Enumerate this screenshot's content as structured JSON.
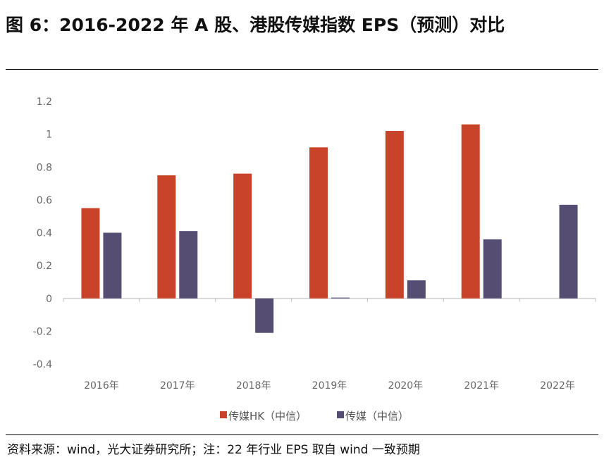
{
  "header": {
    "title": "图 6：2016-2022 年 A 股、港股传媒指数 EPS（预测）对比"
  },
  "footer": {
    "source": "资料来源：wind，光大证券研究所；注：22 年行业 EPS 取自 wind 一致预期"
  },
  "chart_data": {
    "type": "bar",
    "title": "",
    "xlabel": "",
    "ylabel": "",
    "categories": [
      "2016年",
      "2017年",
      "2018年",
      "2019年",
      "2020年",
      "2021年",
      "2022年"
    ],
    "ylim": [
      -0.4,
      1.2
    ],
    "yticks": [
      "1.2",
      "1",
      "0.8",
      "0.6",
      "0.4",
      "0.2",
      "0",
      "-0.2",
      "-0.4"
    ],
    "grid": false,
    "legend": "bottom",
    "series": [
      {
        "name": "传媒HK（中信）",
        "color": "#C8432A",
        "values": [
          0.55,
          0.75,
          0.76,
          0.92,
          1.02,
          1.06,
          null
        ]
      },
      {
        "name": "传媒（中信）",
        "color": "#564D72",
        "values": [
          0.4,
          0.41,
          -0.21,
          0.005,
          0.11,
          0.36,
          0.57
        ]
      }
    ]
  }
}
